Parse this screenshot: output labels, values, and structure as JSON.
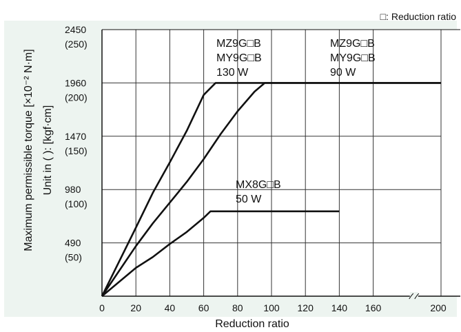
{
  "chart_data": {
    "type": "line",
    "title": "",
    "xlabel": "Reduction ratio",
    "ylabel_line1": "Maximum permissible torque [×10⁻² N·m]",
    "ylabel_line2": "Unit in (  ): [kgf·cm]",
    "legend_note": "□: Reduction ratio",
    "xlim": [
      0,
      200
    ],
    "ylim": [
      0,
      2450
    ],
    "grid": true,
    "x_ticks": [
      "0",
      "20",
      "40",
      "60",
      "80",
      "100",
      "120",
      "140",
      "160",
      "200"
    ],
    "y_ticks": [
      {
        "value": 490,
        "main": "490",
        "sub": "(50)"
      },
      {
        "value": 980,
        "main": "980",
        "sub": "(100)"
      },
      {
        "value": 1470,
        "main": "1470",
        "sub": "(150)"
      },
      {
        "value": 1960,
        "main": "1960",
        "sub": "(200)"
      },
      {
        "value": 2450,
        "main": "2450",
        "sub": "(250)"
      }
    ],
    "series": [
      {
        "label_lines": [
          "MZ9G□B",
          "MY9G□B",
          "130 W"
        ],
        "points": [
          [
            0,
            0
          ],
          [
            20,
            630
          ],
          [
            30,
            950
          ],
          [
            40,
            1230
          ],
          [
            50,
            1520
          ],
          [
            60,
            1850
          ],
          [
            67,
            1960
          ],
          [
            200,
            1960
          ]
        ]
      },
      {
        "label_lines": [
          "MZ9G□B",
          "MY9G□B",
          "90 W"
        ],
        "points": [
          [
            0,
            0
          ],
          [
            20,
            460
          ],
          [
            30,
            670
          ],
          [
            40,
            860
          ],
          [
            50,
            1050
          ],
          [
            60,
            1260
          ],
          [
            70,
            1490
          ],
          [
            80,
            1700
          ],
          [
            90,
            1880
          ],
          [
            96,
            1960
          ],
          [
            200,
            1960
          ]
        ]
      },
      {
        "label_lines": [
          "MX8G□B",
          "50 W"
        ],
        "points": [
          [
            0,
            0
          ],
          [
            20,
            260
          ],
          [
            30,
            360
          ],
          [
            40,
            480
          ],
          [
            50,
            590
          ],
          [
            60,
            720
          ],
          [
            64,
            780
          ],
          [
            140,
            780
          ]
        ]
      }
    ],
    "colors": {
      "line": "#111111",
      "grid": "#333333",
      "background": "#ffffff"
    }
  }
}
